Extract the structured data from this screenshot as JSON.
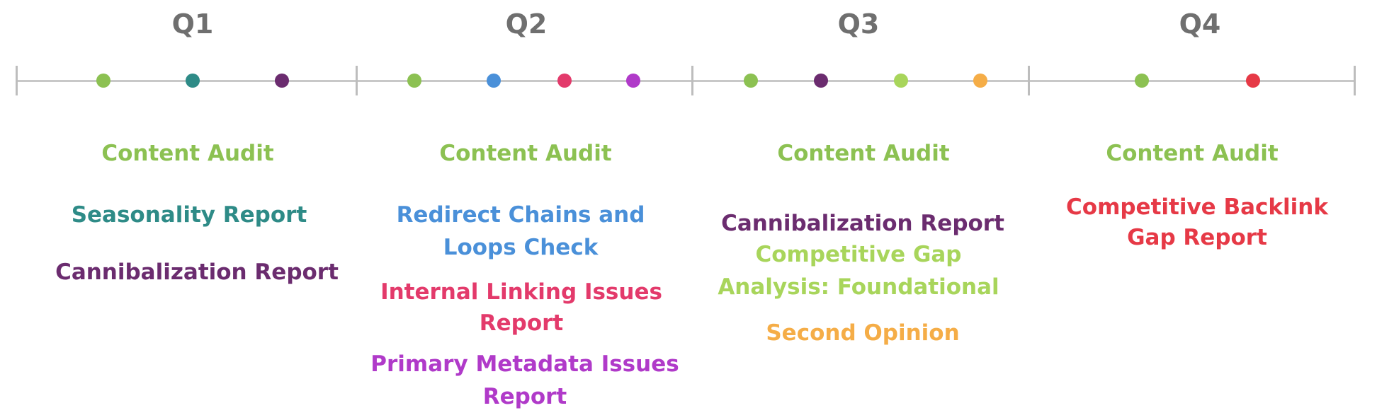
{
  "quarters": [
    {
      "label": "Q1",
      "items": [
        {
          "text": "Content Audit",
          "color": "#8cc152"
        },
        {
          "text": "Seasonality Report",
          "color": "#2e8b87"
        },
        {
          "text": "Cannibalization Report",
          "color": "#6b2c6f"
        }
      ]
    },
    {
      "label": "Q2",
      "items": [
        {
          "text": "Content Audit",
          "color": "#8cc152"
        },
        {
          "text": "Redirect Chains and Loops Check",
          "color": "#4a90d9"
        },
        {
          "text": "Internal Linking Issues Report",
          "color": "#e33a6b"
        },
        {
          "text": "Primary Metadata Issues Report",
          "color": "#b03ac9"
        }
      ]
    },
    {
      "label": "Q3",
      "items": [
        {
          "text": "Content Audit",
          "color": "#8cc152"
        },
        {
          "text": "Cannibalization Report",
          "color": "#6b2c6f"
        },
        {
          "text": "Competitive Gap Analysis: Foundational",
          "color": "#a8d55b"
        },
        {
          "text": "Second Opinion",
          "color": "#f5ad47"
        }
      ]
    },
    {
      "label": "Q4",
      "items": [
        {
          "text": "Content Audit",
          "color": "#8cc152"
        },
        {
          "text": "Competitive Backlink Gap Report",
          "color": "#e63946"
        }
      ]
    }
  ]
}
